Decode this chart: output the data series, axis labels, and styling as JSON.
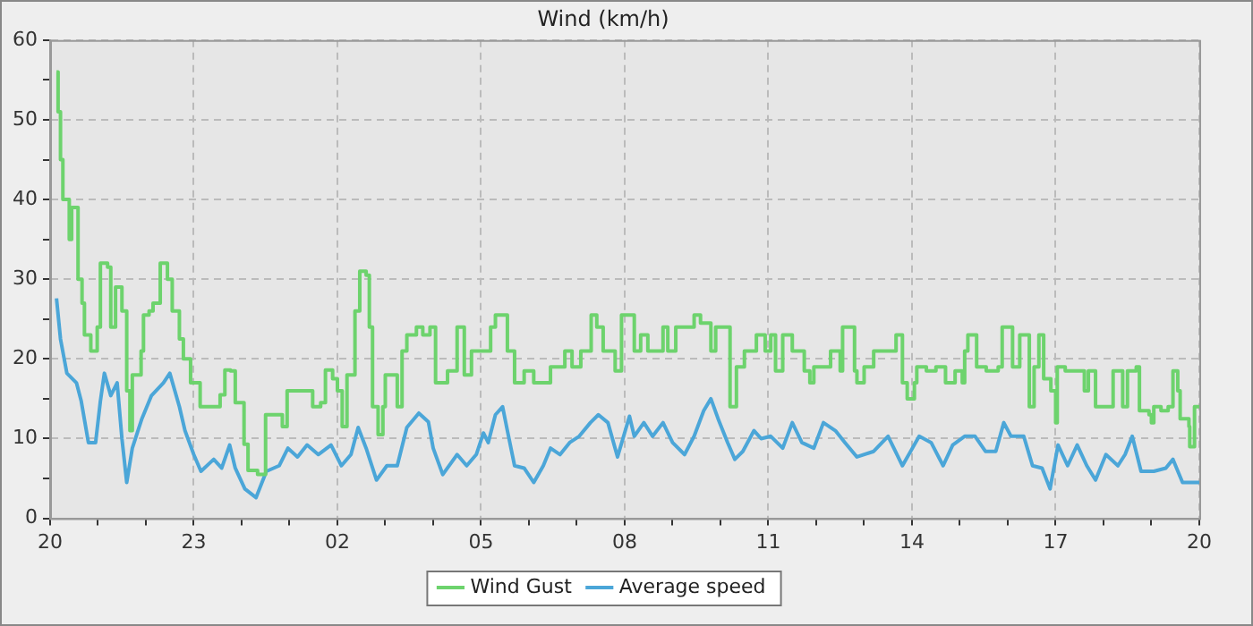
{
  "chart_data": {
    "type": "line",
    "title": "Wind (km/h)",
    "x": [
      "--01-01T20:08",
      "--01-01T20:10",
      "--01-01T20:13",
      "--01-01T20:16",
      "--01-01T20:24",
      "--01-01T20:27",
      "--01-01T20:35",
      "--01-01T20:40",
      "--01-01T20:43",
      "--01-01T20:51",
      "--01-01T20:59",
      "--01-01T21:03",
      "--01-01T21:12",
      "--01-01T21:16",
      "--01-01T21:22",
      "--01-01T21:30",
      "--01-01T21:36",
      "--01-01T21:40",
      "--01-01T21:43",
      "--01-01T21:54",
      "--01-01T21:57",
      "--01-01T22:04",
      "--01-01T22:09",
      "--01-01T22:18",
      "--01-01T22:27",
      "--01-01T22:33",
      "--01-01T22:42",
      "--01-01T22:47",
      "--01-01T22:56",
      "--01-01T23:08",
      "--01-01T23:33",
      "--01-01T23:39",
      "--01-01T23:46",
      "--01-01T23:52",
      "--01-02T00:03",
      "--01-02T00:08",
      "--01-02T00:20",
      "--01-02T00:30",
      "--01-02T00:48",
      "--01-02T00:51",
      "--01-02T00:57",
      "--01-02T01:22",
      "--01-02T01:29",
      "--01-02T01:39",
      "--01-02T01:45",
      "--01-02T01:54",
      "--01-02T02:00",
      "--01-02T02:06",
      "--01-02T02:12",
      "--01-02T02:22",
      "--01-02T02:28",
      "--01-02T02:36",
      "--01-02T02:40",
      "--01-02T02:44",
      "--01-02T02:51",
      "--01-02T02:57",
      "--01-02T03:00",
      "--01-02T03:12",
      "--01-02T03:15",
      "--01-02T03:21",
      "--01-02T03:27",
      "--01-02T03:39",
      "--01-02T03:47",
      "--01-02T03:56",
      "--01-02T04:03",
      "--01-02T04:18",
      "--01-02T04:30",
      "--01-02T04:39",
      "--01-02T04:48",
      "--01-02T05:09",
      "--01-02T05:12",
      "--01-02T05:18",
      "--01-02T05:27",
      "--01-02T05:33",
      "--01-02T05:42",
      "--01-02T05:54",
      "--01-02T06:06",
      "--01-02T06:21",
      "--01-02T06:27",
      "--01-02T06:42",
      "--01-02T06:45",
      "--01-02T06:54",
      "--01-02T07:05",
      "--01-02T07:18",
      "--01-02T07:25",
      "--01-02T07:33",
      "--01-02T07:42",
      "--01-02T07:48",
      "--01-02T07:56",
      "--01-02T08:03",
      "--01-02T08:12",
      "--01-02T08:20",
      "--01-02T08:29",
      "--01-02T08:42",
      "--01-02T08:48",
      "--01-02T08:54",
      "--01-02T09:04",
      "--01-02T09:21",
      "--01-02T09:27",
      "--01-02T09:35",
      "--01-02T09:48",
      "--01-02T09:54",
      "--01-02T10:09",
      "--01-02T10:12",
      "--01-02T10:20",
      "--01-02T10:30",
      "--01-02T10:45",
      "--01-02T10:56",
      "--01-02T11:03",
      "--01-02T11:09",
      "--01-02T11:18",
      "--01-02T11:30",
      "--01-02T11:45",
      "--01-02T11:52",
      "--01-02T11:57",
      "--01-02T12:09",
      "--01-02T12:18",
      "--01-02T12:30",
      "--01-02T12:33",
      "--01-02T12:42",
      "--01-02T12:48",
      "--01-02T12:51",
      "--01-02T13:00",
      "--01-02T13:12",
      "--01-02T13:36",
      "--01-02T13:40",
      "--01-02T13:45",
      "--01-02T13:48",
      "--01-02T13:54",
      "--01-02T14:03",
      "--01-02T14:06",
      "--01-02T14:18",
      "--01-02T14:30",
      "--01-02T14:42",
      "--01-02T14:54",
      "--01-02T15:03",
      "--01-02T15:06",
      "--01-02T15:10",
      "--01-02T15:15",
      "--01-02T15:21",
      "--01-02T15:33",
      "--01-02T15:48",
      "--01-02T15:53",
      "--01-02T16:00",
      "--01-02T16:06",
      "--01-02T16:15",
      "--01-02T16:24",
      "--01-02T16:27",
      "--01-02T16:33",
      "--01-02T16:39",
      "--01-02T16:45",
      "--01-02T16:54",
      "--01-02T17:00",
      "--01-02T17:02",
      "--01-02T17:12",
      "--01-02T17:30",
      "--01-02T17:36",
      "--01-02T17:41",
      "--01-02T17:50",
      "--01-02T18:09",
      "--01-02T18:12",
      "--01-02T18:18",
      "--01-02T18:24",
      "--01-02T18:30",
      "--01-02T18:41",
      "--01-02T18:45",
      "--01-02T18:57",
      "--01-02T19:00",
      "--01-02T19:03",
      "--01-02T19:12",
      "--01-02T19:21",
      "--01-02T19:27",
      "--01-02T19:33",
      "--01-02T19:36",
      "--01-02T19:47",
      "--01-02T19:48",
      "--01-02T19:54",
      "--01-02T20:00"
    ],
    "series": [
      {
        "name": "Wind Gust",
        "type": "step",
        "color": "#6dd36d",
        "values": [
          56,
          51,
          45,
          40,
          35,
          39,
          30,
          27,
          23,
          21,
          24,
          32,
          31.5,
          24,
          29,
          26,
          16,
          11,
          18,
          21,
          25.5,
          26,
          27,
          32,
          30,
          26,
          22.5,
          20,
          17,
          14,
          15.5,
          18.6,
          18.5,
          14.5,
          9.3,
          6,
          5.5,
          13,
          13,
          11.5,
          16,
          16,
          14,
          14.5,
          18.6,
          17.5,
          16,
          11.5,
          18,
          26,
          31,
          30.5,
          24,
          14,
          10.5,
          14,
          18,
          18,
          14,
          21,
          23,
          24,
          23,
          24,
          17,
          18.5,
          24,
          18,
          21,
          21,
          24,
          25.5,
          25.5,
          21,
          17,
          18.5,
          17,
          17,
          19,
          19,
          21,
          19,
          21,
          25.5,
          24,
          21,
          21,
          18.5,
          25.5,
          25.5,
          21,
          23,
          21,
          21,
          24,
          21,
          24,
          24,
          25.5,
          24.5,
          21,
          24,
          24,
          14,
          19,
          21,
          23,
          21,
          23,
          18.5,
          23,
          21,
          18.5,
          17,
          19,
          19,
          21,
          18.5,
          24,
          24,
          18.5,
          17,
          19,
          21,
          21,
          23,
          23,
          17,
          15,
          17,
          19,
          18.5,
          19,
          17,
          18.5,
          17,
          21,
          23,
          23,
          19,
          18.5,
          19,
          24,
          24,
          19,
          23,
          23,
          14,
          19,
          23,
          17.5,
          16,
          12,
          19,
          18.5,
          18.5,
          16,
          18.5,
          14,
          14,
          18.5,
          18.5,
          14,
          18.5,
          19,
          13.5,
          13,
          12,
          14,
          13.5,
          14,
          18.5,
          16,
          12.5,
          11.5,
          9,
          14,
          14
        ]
      },
      {
        "name": "Average speed",
        "type": "line",
        "color": "#4ba6d8",
        "x": [
          "--01-01T20:08",
          "--01-01T20:13",
          "--01-01T20:21",
          "--01-01T20:33",
          "--01-01T20:39",
          "--01-01T20:48",
          "--01-01T20:57",
          "--01-01T21:03",
          "--01-01T21:08",
          "--01-01T21:16",
          "--01-01T21:24",
          "--01-01T21:30",
          "--01-01T21:36",
          "--01-01T21:43",
          "--01-01T21:55",
          "--01-01T22:07",
          "--01-01T22:22",
          "--01-01T22:30",
          "--01-01T22:42",
          "--01-01T22:49",
          "--01-01T23:00",
          "--01-01T23:09",
          "--01-01T23:25",
          "--01-01T23:35",
          "--01-01T23:45",
          "--01-01T23:52",
          "--01-02T00:04",
          "--01-02T00:18",
          "--01-02T00:31",
          "--01-02T00:47",
          "--01-02T00:58",
          "--01-02T01:10",
          "--01-02T01:22",
          "--01-02T01:36",
          "--01-02T01:52",
          "--01-02T02:05",
          "--01-02T02:17",
          "--01-02T02:26",
          "--01-02T02:36",
          "--01-02T02:49",
          "--01-02T03:02",
          "--01-02T03:15",
          "--01-02T03:27",
          "--01-02T03:42",
          "--01-02T03:54",
          "--01-02T04:00",
          "--01-02T04:12",
          "--01-02T04:30",
          "--01-02T04:42",
          "--01-02T04:54",
          "--01-02T05:03",
          "--01-02T05:09",
          "--01-02T05:18",
          "--01-02T05:27",
          "--01-02T05:33",
          "--01-02T05:42",
          "--01-02T05:54",
          "--01-02T06:06",
          "--01-02T06:18",
          "--01-02T06:27",
          "--01-02T06:39",
          "--01-02T06:51",
          "--01-02T07:03",
          "--01-02T07:17",
          "--01-02T07:27",
          "--01-02T07:39",
          "--01-02T07:51",
          "--01-02T08:06",
          "--01-02T08:12",
          "--01-02T08:24",
          "--01-02T08:35",
          "--01-02T08:48",
          "--01-02T09:00",
          "--01-02T09:15",
          "--01-02T09:27",
          "--01-02T09:39",
          "--01-02T09:48",
          "--01-02T09:57",
          "--01-02T10:09",
          "--01-02T10:18",
          "--01-02T10:28",
          "--01-02T10:42",
          "--01-02T10:51",
          "--01-02T11:03",
          "--01-02T11:18",
          "--01-02T11:30",
          "--01-02T11:42",
          "--01-02T11:57",
          "--01-02T12:09",
          "--01-02T12:24",
          "--01-02T12:36",
          "--01-02T12:51",
          "--01-02T13:12",
          "--01-02T13:30",
          "--01-02T13:48",
          "--01-02T14:09",
          "--01-02T14:24",
          "--01-02T14:39",
          "--01-02T14:51",
          "--01-02T15:06",
          "--01-02T15:19",
          "--01-02T15:32",
          "--01-02T15:45",
          "--01-02T15:55",
          "--01-02T16:04",
          "--01-02T16:20",
          "--01-02T16:31",
          "--01-02T16:43",
          "--01-02T16:53",
          "--01-02T17:03",
          "--01-02T17:15",
          "--01-02T17:27",
          "--01-02T17:39",
          "--01-02T17:50",
          "--01-02T18:03",
          "--01-02T18:18",
          "--01-02T18:27",
          "--01-02T18:36",
          "--01-02T18:47",
          "--01-02T19:03",
          "--01-02T19:18",
          "--01-02T19:27",
          "--01-02T19:39",
          "--01-02T20:00"
        ],
        "values": [
          27.6,
          22.5,
          18.2,
          17,
          14.7,
          9.5,
          9.5,
          14.7,
          18.2,
          15.4,
          17,
          10,
          4.5,
          8.8,
          12.5,
          15.4,
          17,
          18.2,
          14,
          11,
          8,
          5.9,
          7.4,
          6.3,
          9.2,
          6.3,
          3.7,
          2.6,
          5.9,
          6.6,
          8.8,
          7.7,
          9.2,
          8,
          9.2,
          6.6,
          8,
          11.4,
          8.8,
          4.8,
          6.6,
          6.6,
          11.4,
          13.2,
          12.1,
          8.8,
          5.5,
          8,
          6.6,
          8,
          10.7,
          9.5,
          13,
          14,
          11,
          6.6,
          6.3,
          4.5,
          6.6,
          8.8,
          8,
          9.5,
          10.3,
          12,
          13,
          12,
          7.7,
          12.8,
          10.3,
          12,
          10.3,
          12,
          9.5,
          8,
          10.3,
          13.5,
          15,
          12.5,
          9.5,
          7.4,
          8.4,
          11,
          10,
          10.3,
          8.8,
          12,
          9.5,
          8.8,
          12,
          11,
          9.5,
          7.7,
          8.4,
          10.3,
          6.6,
          10.3,
          9.5,
          6.6,
          9.2,
          10.3,
          10.3,
          8.4,
          8.4,
          12,
          10.3,
          10.3,
          6.6,
          6.3,
          3.7,
          9.2,
          6.6,
          9.2,
          6.6,
          4.8,
          8,
          6.6,
          8,
          10.3,
          5.9,
          5.9,
          6.3,
          7.4,
          4.5,
          4.5
        ]
      }
    ],
    "xlim": [
      "--01-01T20:00",
      "--01-02T20:00"
    ],
    "xticks": [
      {
        "value": "--01-01T20:00",
        "label": "20"
      },
      {
        "value": "--01-01T21:00",
        "label": null
      },
      {
        "value": "--01-01T22:00",
        "label": null
      },
      {
        "value": "--01-01T23:00",
        "label": "23"
      },
      {
        "value": "--01-02T00:00",
        "label": null
      },
      {
        "value": "--01-02T01:00",
        "label": null
      },
      {
        "value": "--01-02T02:00",
        "label": "02"
      },
      {
        "value": "--01-02T03:00",
        "label": null
      },
      {
        "value": "--01-02T04:00",
        "label": null
      },
      {
        "value": "--01-02T05:00",
        "label": "05"
      },
      {
        "value": "--01-02T06:00",
        "label": null
      },
      {
        "value": "--01-02T07:00",
        "label": null
      },
      {
        "value": "--01-02T08:00",
        "label": "08"
      },
      {
        "value": "--01-02T09:00",
        "label": null
      },
      {
        "value": "--01-02T10:00",
        "label": null
      },
      {
        "value": "--01-02T11:00",
        "label": "11"
      },
      {
        "value": "--01-02T12:00",
        "label": null
      },
      {
        "value": "--01-02T13:00",
        "label": null
      },
      {
        "value": "--01-02T14:00",
        "label": "14"
      },
      {
        "value": "--01-02T15:00",
        "label": null
      },
      {
        "value": "--01-02T16:00",
        "label": null
      },
      {
        "value": "--01-02T17:00",
        "label": "17"
      },
      {
        "value": "--01-02T18:00",
        "label": null
      },
      {
        "value": "--01-02T19:00",
        "label": null
      },
      {
        "value": "--01-02T20:00",
        "label": "20"
      }
    ],
    "ylim": [
      0,
      60
    ],
    "yticks": [
      0,
      {
        "value": 5,
        "label": null
      },
      10,
      {
        "value": 15,
        "label": null
      },
      20,
      {
        "value": 25,
        "label": null
      },
      30,
      {
        "value": 35,
        "label": null
      },
      40,
      {
        "value": 45,
        "label": null
      },
      50,
      {
        "value": 55,
        "label": null
      },
      60
    ],
    "grid": true,
    "legend": "bottom",
    "marker": "none",
    "line_style": "solid"
  }
}
